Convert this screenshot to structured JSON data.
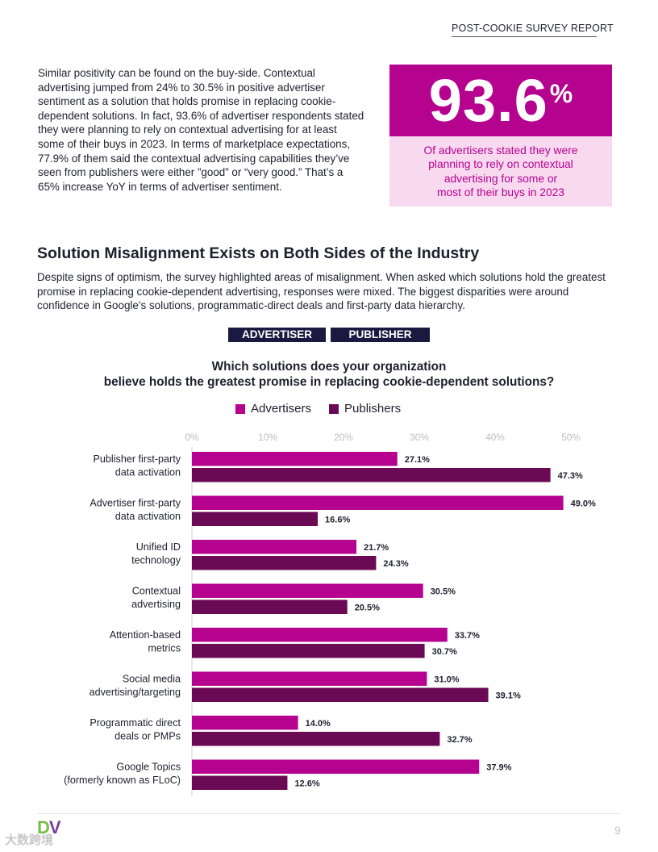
{
  "header": {
    "title": "POST-COOKIE SURVEY REPORT"
  },
  "intro": {
    "paragraph": "Similar positivity can be found on the buy-side. Contextual advertising jumped from 24% to 30.5% in positive advertiser sentiment as a solution that holds promise in replacing cookie-dependent solutions. In fact, 93.6% of advertiser respondents stated they were planning to rely on contextual advertising for at least some of their buys in 2023. In terms of marketplace expectations, 77.9% of them said the contextual advertising capabilities they’ve seen from publishers were either ”good” or “very good.” That’s a 65% increase YoY in terms of advertiser sentiment."
  },
  "stat": {
    "value": "93.6",
    "unit": "%",
    "caption_lines": [
      "Of advertisers stated they were",
      "planning to rely on contextual",
      "advertising for some or",
      "most of their buys in 2023"
    ]
  },
  "section": {
    "heading": "Solution Misalignment Exists on Both Sides of the Industry",
    "body": "Despite signs of optimism, the survey highlighted areas of misalignment. When asked which solutions hold the greatest promise in replacing cookie-dependent advertising, responses were mixed. The biggest disparities were around confidence in Google’s solutions, programmatic-direct deals and first-party data hierarchy."
  },
  "tabs": {
    "advertiser": "ADVERTISER",
    "publisher": "PUBLISHER"
  },
  "chart_data": {
    "type": "bar",
    "orientation": "horizontal",
    "title_lines": [
      "Which solutions does your organization",
      "believe holds the greatest promise in replacing cookie-dependent solutions?"
    ],
    "categories": [
      [
        "Publisher first-party",
        "data activation"
      ],
      [
        "Advertiser first-party",
        "data activation"
      ],
      [
        "Unified ID",
        "technology"
      ],
      [
        "Contextual",
        "advertising"
      ],
      [
        "Attention-based",
        "metrics"
      ],
      [
        "Social media",
        "advertising/targeting"
      ],
      [
        "Programmatic direct",
        "deals or PMPs"
      ],
      [
        "Google Topics",
        "(formerly known as FLoC)"
      ]
    ],
    "series": [
      {
        "name": "Advertisers",
        "color": "#b5028f",
        "values": [
          27.1,
          49.0,
          21.7,
          30.5,
          33.7,
          31.0,
          14.0,
          37.9
        ]
      },
      {
        "name": "Publishers",
        "color": "#6a0a54",
        "values": [
          47.3,
          16.6,
          24.3,
          20.5,
          30.7,
          39.1,
          32.7,
          12.6
        ]
      }
    ],
    "xlim": [
      0,
      50
    ],
    "ticks": [
      0,
      10,
      20,
      30,
      40,
      50
    ],
    "tick_labels": [
      "0%",
      "10%",
      "20%",
      "30%",
      "40%",
      "50%"
    ],
    "legend_position": "top"
  },
  "footer": {
    "logo_d": "D",
    "logo_v": "V",
    "page_number": "9",
    "watermark": "大数跨境"
  },
  "colors": {
    "accent": "#b5028f",
    "dark": "#6a0a54",
    "tab_bg": "#1a1a40",
    "stat_light": "#f9d9f0"
  }
}
